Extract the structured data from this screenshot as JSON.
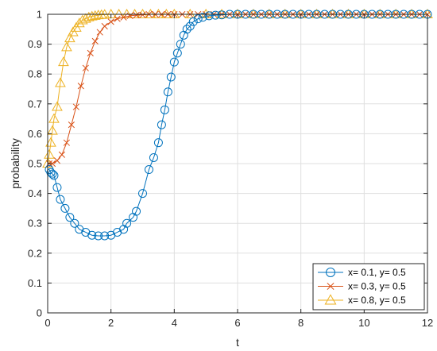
{
  "chart_data": {
    "type": "line",
    "xlabel": "t",
    "ylabel": "probability",
    "xlim": [
      0,
      12
    ],
    "ylim": [
      0,
      1
    ],
    "xticks": [
      0,
      2,
      4,
      6,
      8,
      10,
      12
    ],
    "yticks": [
      0,
      0.1,
      0.2,
      0.3,
      0.4,
      0.5,
      0.6,
      0.7,
      0.8,
      0.9,
      1
    ],
    "grid": true,
    "legend_position": "bottom-right",
    "series": [
      {
        "name": "x= 0.1, y= 0.5",
        "color": "#0072BD",
        "marker": "circle",
        "x": [
          0.05,
          0.1,
          0.15,
          0.2,
          0.3,
          0.4,
          0.55,
          0.7,
          0.85,
          1.0,
          1.2,
          1.4,
          1.6,
          1.8,
          2.0,
          2.2,
          2.4,
          2.5,
          2.7,
          2.8,
          3.0,
          3.2,
          3.35,
          3.5,
          3.6,
          3.7,
          3.8,
          3.9,
          4.0,
          4.1,
          4.2,
          4.3,
          4.4,
          4.5,
          4.6,
          4.75,
          4.9,
          5.1,
          5.3,
          5.5,
          5.75,
          6.0,
          6.25,
          6.5,
          6.75,
          7.0,
          7.25,
          7.5,
          7.75,
          8.0,
          8.25,
          8.5,
          8.75,
          9.0,
          9.25,
          9.5,
          9.75,
          10.0,
          10.25,
          10.5,
          10.75,
          11.0,
          11.25,
          11.5,
          11.75,
          12.0
        ],
        "y": [
          0.48,
          0.47,
          0.465,
          0.46,
          0.42,
          0.38,
          0.35,
          0.32,
          0.3,
          0.28,
          0.27,
          0.26,
          0.258,
          0.258,
          0.26,
          0.27,
          0.28,
          0.3,
          0.32,
          0.34,
          0.4,
          0.48,
          0.52,
          0.57,
          0.63,
          0.68,
          0.74,
          0.79,
          0.84,
          0.87,
          0.9,
          0.93,
          0.95,
          0.96,
          0.975,
          0.985,
          0.99,
          0.995,
          0.997,
          0.998,
          1.0,
          1.0,
          1.0,
          1.0,
          1.0,
          1.0,
          1.0,
          1.0,
          1.0,
          1.0,
          1.0,
          1.0,
          1.0,
          1.0,
          1.0,
          1.0,
          1.0,
          1.0,
          1.0,
          1.0,
          1.0,
          1.0,
          1.0,
          1.0,
          1.0,
          1.0
        ]
      },
      {
        "name": "x= 0.3, y= 0.5",
        "color": "#D95319",
        "marker": "x",
        "x": [
          0.05,
          0.15,
          0.3,
          0.45,
          0.6,
          0.75,
          0.9,
          1.05,
          1.2,
          1.35,
          1.5,
          1.65,
          1.8,
          2.0,
          2.2,
          2.4,
          2.6,
          2.8,
          3.0,
          3.2,
          3.4,
          3.6,
          3.8,
          4.0,
          4.25,
          4.5,
          4.75,
          5.0,
          5.25,
          5.5,
          5.75,
          6.0,
          6.25,
          6.5,
          6.75,
          7.0,
          7.25,
          7.5,
          7.75,
          8.0,
          8.25,
          8.5,
          8.75,
          9.0,
          9.25,
          9.5,
          9.75,
          10.0,
          10.25,
          10.5,
          10.75,
          11.0,
          11.25,
          11.5,
          11.75,
          12.0
        ],
        "y": [
          0.5,
          0.5,
          0.51,
          0.53,
          0.57,
          0.63,
          0.69,
          0.76,
          0.82,
          0.87,
          0.91,
          0.94,
          0.96,
          0.975,
          0.985,
          0.99,
          0.995,
          0.997,
          0.998,
          1.0,
          1.0,
          1.0,
          1.0,
          1.0,
          1.0,
          1.0,
          1.0,
          1.0,
          1.0,
          1.0,
          1.0,
          1.0,
          1.0,
          1.0,
          1.0,
          1.0,
          1.0,
          1.0,
          1.0,
          1.0,
          1.0,
          1.0,
          1.0,
          1.0,
          1.0,
          1.0,
          1.0,
          1.0,
          1.0,
          1.0,
          1.0,
          1.0,
          1.0,
          1.0,
          1.0,
          1.0
        ]
      },
      {
        "name": "x= 0.8, y= 0.5",
        "color": "#EDB120",
        "marker": "triangle",
        "x": [
          0.0,
          0.05,
          0.1,
          0.15,
          0.2,
          0.3,
          0.4,
          0.5,
          0.6,
          0.7,
          0.8,
          0.9,
          1.0,
          1.1,
          1.2,
          1.3,
          1.4,
          1.5,
          1.6,
          1.7,
          1.8,
          2.0,
          2.25,
          2.5,
          2.75,
          3.0,
          3.25,
          3.5,
          3.75,
          4.0,
          4.5,
          5.0,
          5.5,
          6.0,
          6.5,
          7.0,
          7.5,
          8.0,
          8.5,
          9.0,
          9.5,
          10.0,
          10.5,
          11.0,
          11.5,
          12.0
        ],
        "y": [
          0.5,
          0.53,
          0.57,
          0.61,
          0.65,
          0.69,
          0.77,
          0.84,
          0.89,
          0.92,
          0.94,
          0.955,
          0.97,
          0.98,
          0.985,
          0.99,
          0.993,
          0.995,
          0.997,
          0.998,
          0.999,
          1.0,
          1.0,
          1.0,
          1.0,
          1.0,
          1.0,
          1.0,
          1.0,
          1.0,
          1.0,
          1.0,
          1.0,
          1.0,
          1.0,
          1.0,
          1.0,
          1.0,
          1.0,
          1.0,
          1.0,
          1.0,
          1.0,
          1.0,
          1.0,
          1.0
        ]
      }
    ]
  }
}
